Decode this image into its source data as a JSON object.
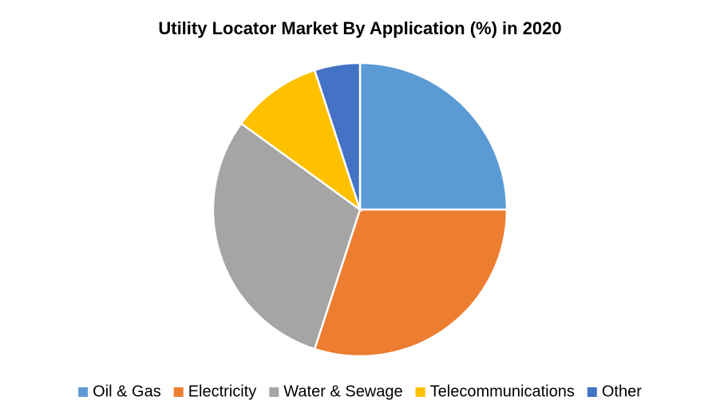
{
  "chart_data": {
    "type": "pie",
    "title": "Utility Locator Market By Application (%) in 2020",
    "categories": [
      "Oil & Gas",
      "Electricity",
      "Water & Sewage",
      "Telecommunications",
      "Other"
    ],
    "values": [
      25,
      30,
      30,
      10,
      5
    ],
    "colors": [
      "#5b9bd5",
      "#ed7d31",
      "#a5a5a5",
      "#ffc000",
      "#4472c4"
    ],
    "legend": "bottom"
  }
}
